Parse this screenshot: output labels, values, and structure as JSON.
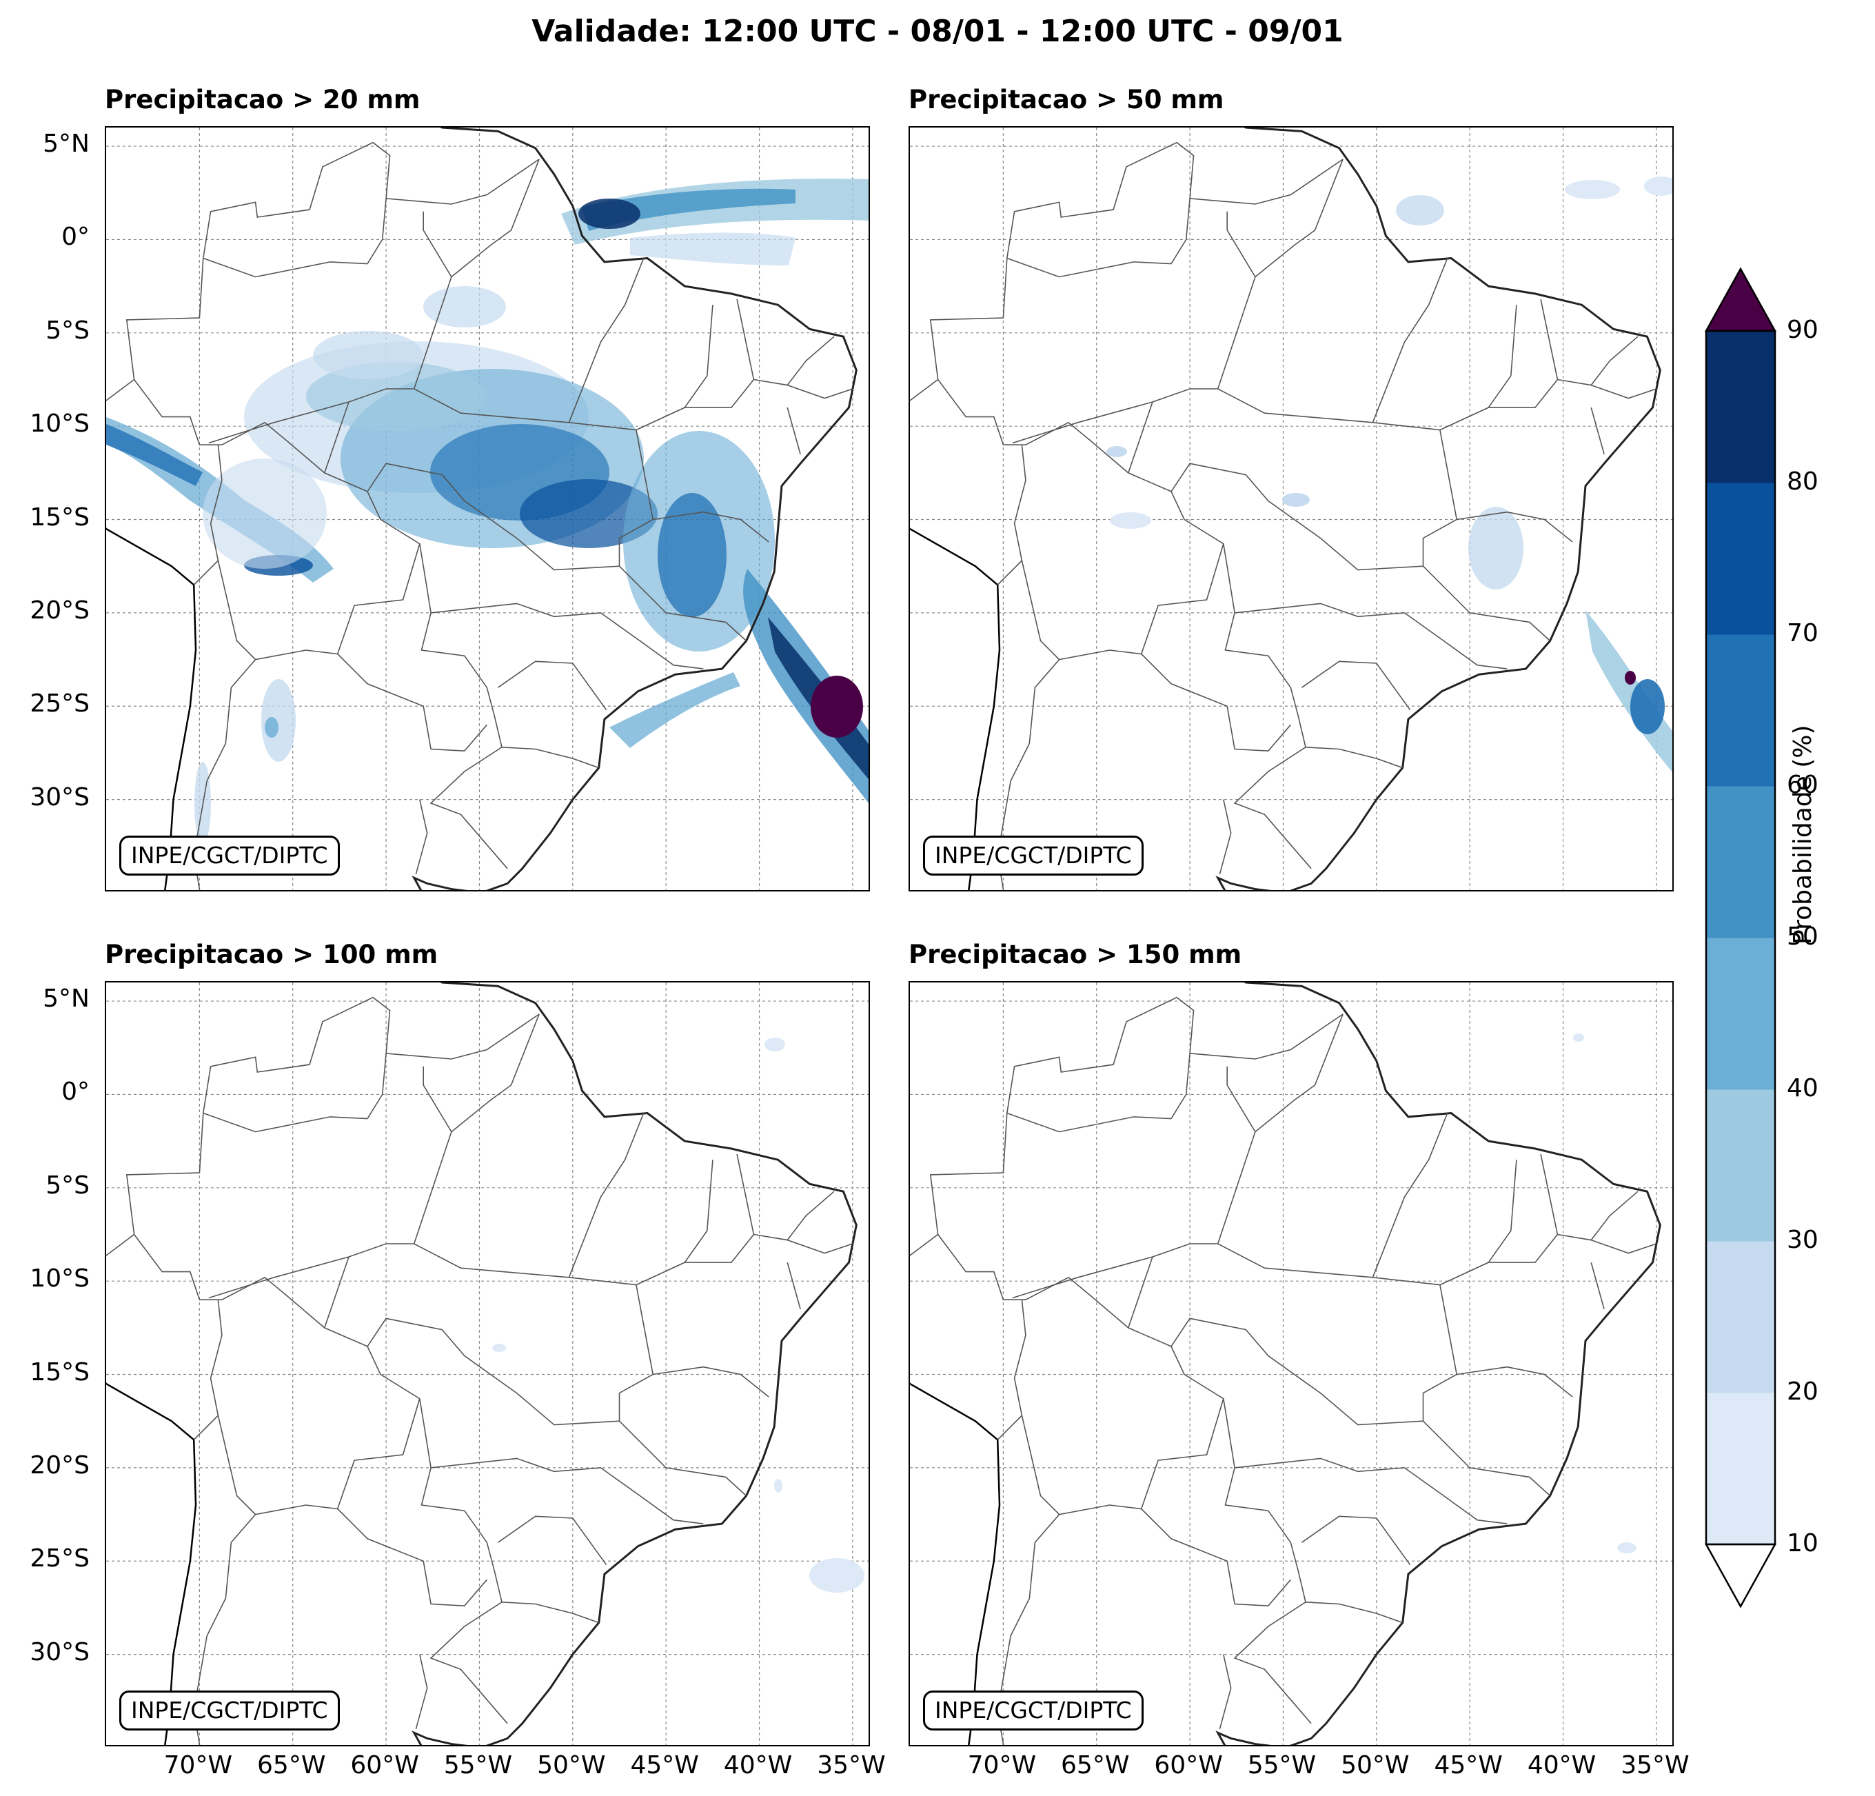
{
  "title": "Validade: 12:00 UTC - 08/01 - 12:00 UTC - 09/01",
  "panels": [
    {
      "title": "Precipitacao > 20 mm",
      "credit": "INPE/CGCT/DIPTC"
    },
    {
      "title": "Precipitacao > 50 mm",
      "credit": "INPE/CGCT/DIPTC"
    },
    {
      "title": "Precipitacao > 100 mm",
      "credit": "INPE/CGCT/DIPTC"
    },
    {
      "title": "Precipitacao > 150 mm",
      "credit": "INPE/CGCT/DIPTC"
    }
  ],
  "lat_ticks": [
    "5°N",
    "0°",
    "5°S",
    "10°S",
    "15°S",
    "20°S",
    "25°S",
    "30°S"
  ],
  "lon_ticks": [
    "70°W",
    "65°W",
    "60°W",
    "55°W",
    "50°W",
    "45°W",
    "40°W",
    "35°W"
  ],
  "colorbar": {
    "title": "Probabilidade (%)",
    "ticks": [
      "10",
      "20",
      "30",
      "40",
      "50",
      "60",
      "70",
      "80",
      "90"
    ],
    "colors": [
      "#dde9f6",
      "#c6dbef",
      "#9ecae1",
      "#6baed6",
      "#4292c6",
      "#2171b5",
      "#08519c",
      "#08306b"
    ],
    "over_color": "#4a0045",
    "under_color": "#ffffff"
  },
  "map_extent": {
    "lon_min": -75,
    "lon_max": -34,
    "lat_min": -35,
    "lat_max": 6
  }
}
